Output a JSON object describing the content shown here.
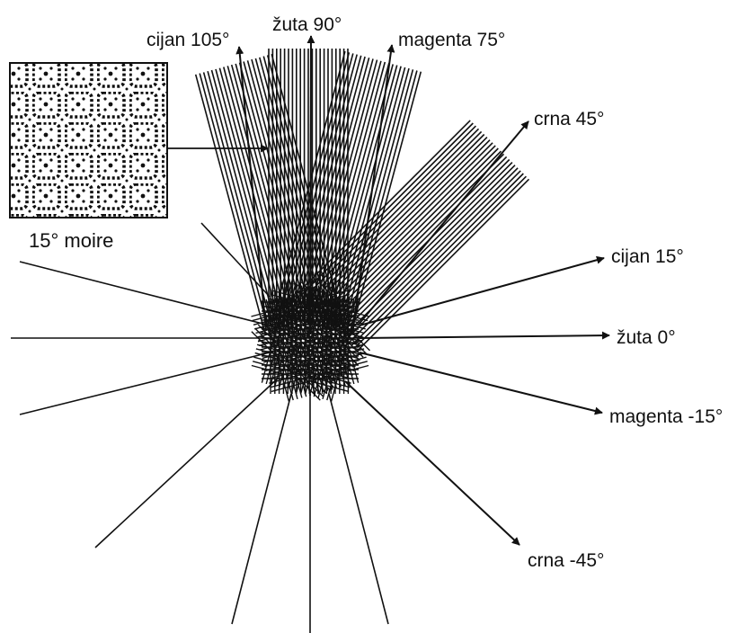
{
  "labels": {
    "cyan_105": "cijan 105°",
    "yellow_90": "žuta 90°",
    "magenta_75": "magenta 75°",
    "black_45": "crna 45°",
    "cyan_15": "cijan 15°",
    "yellow_0": "žuta 0°",
    "magenta_m15": "magenta -15°",
    "black_m45": "crna -45°",
    "moire_caption": "15° moire"
  },
  "screens": [
    {
      "key": "cyan_105",
      "angle_deg": 105
    },
    {
      "key": "yellow_90",
      "angle_deg": 90
    },
    {
      "key": "magenta_75",
      "angle_deg": 75
    },
    {
      "key": "black_45",
      "angle_deg": 45
    },
    {
      "key": "cyan_15",
      "angle_deg": 15
    },
    {
      "key": "yellow_0",
      "angle_deg": 0
    },
    {
      "key": "magenta_m15",
      "angle_deg": -15
    },
    {
      "key": "black_m45",
      "angle_deg": -45
    }
  ],
  "colors": {
    "ink": "#111111",
    "background": "#ffffff"
  }
}
